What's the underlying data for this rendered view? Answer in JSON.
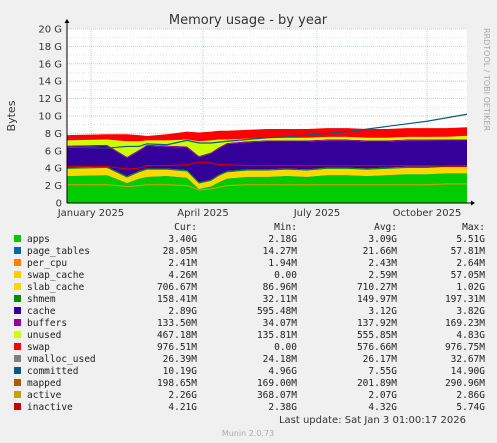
{
  "chart_data": {
    "type": "area",
    "title": "Memory usage - by year",
    "ylabel": "Bytes",
    "ylim": [
      0,
      20
    ],
    "y_unit": "G",
    "y_ticks": [
      "0",
      "2 G",
      "4 G",
      "6 G",
      "8 G",
      "10 G",
      "12 G",
      "14 G",
      "16 G",
      "18 G",
      "20 G"
    ],
    "x_ticks": [
      "January 2025",
      "April 2025",
      "July 2025",
      "October 2025"
    ],
    "x_tick_positions": [
      0.06,
      0.34,
      0.625,
      0.9
    ],
    "stack_order": [
      "apps",
      "page_tables",
      "per_cpu",
      "swap_cache",
      "slab_cache",
      "shmem",
      "cache",
      "buffers",
      "unused"
    ],
    "x": [
      0.0,
      0.1,
      0.15,
      0.18,
      0.2,
      0.25,
      0.3,
      0.33,
      0.36,
      0.38,
      0.4,
      0.45,
      0.5,
      0.55,
      0.6,
      0.65,
      0.7,
      0.75,
      0.8,
      0.85,
      0.9,
      0.95,
      1.0
    ],
    "series": [
      {
        "name": "apps",
        "color": "#00cc00",
        "values": [
          3.1,
          3.2,
          2.3,
          2.8,
          3.0,
          3.1,
          2.9,
          1.6,
          1.9,
          2.4,
          2.8,
          3.0,
          3.0,
          3.1,
          3.0,
          3.2,
          3.2,
          3.1,
          3.2,
          3.3,
          3.3,
          3.4,
          3.4
        ]
      },
      {
        "name": "page_tables",
        "color": "#0066b3",
        "values": [
          0.02,
          0.02,
          0.02,
          0.02,
          0.02,
          0.02,
          0.02,
          0.02,
          0.02,
          0.02,
          0.02,
          0.02,
          0.02,
          0.02,
          0.02,
          0.02,
          0.02,
          0.02,
          0.02,
          0.02,
          0.02,
          0.03,
          0.03
        ]
      },
      {
        "name": "per_cpu",
        "color": "#ff8000",
        "values": [
          0.002,
          0.002,
          0.002,
          0.002,
          0.002,
          0.002,
          0.002,
          0.002,
          0.002,
          0.002,
          0.002,
          0.002,
          0.002,
          0.002,
          0.002,
          0.002,
          0.002,
          0.002,
          0.002,
          0.002,
          0.002,
          0.002,
          0.002
        ]
      },
      {
        "name": "swap_cache",
        "color": "#ffcc00",
        "values": [
          0.0,
          0.0,
          0.0,
          0.0,
          0.0,
          0.0,
          0.0,
          0.0,
          0.0,
          0.0,
          0.0,
          0.0,
          0.0,
          0.0,
          0.0,
          0.0,
          0.0,
          0.0,
          0.0,
          0.0,
          0.0,
          0.0,
          0.0
        ]
      },
      {
        "name": "slab_cache",
        "color": "#ffd700",
        "values": [
          0.8,
          0.8,
          0.6,
          0.7,
          0.8,
          0.7,
          0.7,
          0.6,
          0.6,
          0.7,
          0.7,
          0.7,
          0.7,
          0.7,
          0.7,
          0.7,
          0.7,
          0.7,
          0.7,
          0.7,
          0.7,
          0.7,
          0.7
        ]
      },
      {
        "name": "shmem",
        "color": "#008f00",
        "values": [
          0.15,
          0.15,
          0.15,
          0.15,
          0.15,
          0.15,
          0.15,
          0.15,
          0.15,
          0.15,
          0.15,
          0.15,
          0.15,
          0.15,
          0.15,
          0.15,
          0.15,
          0.15,
          0.15,
          0.15,
          0.15,
          0.15,
          0.15
        ]
      },
      {
        "name": "cache",
        "color": "#330099",
        "values": [
          2.4,
          2.4,
          2.1,
          2.3,
          2.6,
          2.5,
          2.6,
          2.9,
          3.0,
          3.0,
          3.1,
          3.1,
          3.2,
          3.1,
          3.2,
          3.1,
          3.1,
          3.1,
          3.0,
          3.0,
          3.0,
          2.9,
          2.9
        ]
      },
      {
        "name": "buffers",
        "color": "#990099",
        "values": [
          0.13,
          0.13,
          0.13,
          0.13,
          0.13,
          0.13,
          0.13,
          0.13,
          0.13,
          0.13,
          0.13,
          0.13,
          0.13,
          0.13,
          0.13,
          0.13,
          0.13,
          0.13,
          0.13,
          0.13,
          0.13,
          0.13,
          0.13
        ]
      },
      {
        "name": "unused",
        "color": "#ccff00",
        "values": [
          0.6,
          0.6,
          1.8,
          1.0,
          0.5,
          0.6,
          0.8,
          1.7,
          1.4,
          0.9,
          0.4,
          0.3,
          0.3,
          0.3,
          0.3,
          0.3,
          0.3,
          0.3,
          0.3,
          0.3,
          0.3,
          0.3,
          0.4
        ]
      }
    ],
    "line_series": [
      {
        "name": "committed",
        "color": "#0a5a80",
        "values": [
          6.4,
          6.3,
          6.5,
          6.5,
          6.8,
          6.7,
          7.2,
          6.9,
          6.9,
          7.0,
          7.1,
          7.3,
          7.5,
          7.6,
          7.8,
          8.0,
          8.2,
          8.5,
          8.8,
          9.1,
          9.4,
          9.8,
          10.2
        ]
      },
      {
        "name": "inactive",
        "color": "#cc0000",
        "values": [
          4.2,
          4.2,
          3.9,
          4.0,
          4.3,
          4.3,
          4.4,
          4.7,
          4.6,
          4.4,
          4.4,
          4.3,
          4.3,
          4.3,
          4.3,
          4.3,
          4.3,
          4.3,
          4.3,
          4.3,
          4.3,
          4.2,
          4.2
        ]
      },
      {
        "name": "active",
        "color": "#c8a000",
        "values": [
          2.1,
          2.1,
          1.9,
          2.0,
          2.1,
          2.1,
          2.0,
          1.5,
          1.6,
          1.8,
          2.0,
          2.1,
          2.1,
          2.1,
          2.1,
          2.1,
          2.1,
          2.1,
          2.1,
          2.1,
          2.1,
          2.2,
          2.2
        ]
      }
    ],
    "swap_band": {
      "name": "swap",
      "color": "#ff0000",
      "values": [
        0.6,
        0.6,
        0.8,
        0.7,
        0.5,
        0.7,
        0.9,
        1.0,
        1.0,
        1.0,
        1.0,
        1.0,
        1.0,
        1.0,
        1.0,
        1.0,
        1.0,
        1.0,
        1.0,
        1.0,
        1.0,
        1.0,
        1.0
      ]
    },
    "legend_headers": [
      "Cur:",
      "Min:",
      "Avg:",
      "Max:"
    ],
    "legend": [
      {
        "name": "apps",
        "color": "#00cc00",
        "cur": "3.40G",
        "min": "2.18G",
        "avg": "3.09G",
        "max": "5.51G"
      },
      {
        "name": "page_tables",
        "color": "#0066b3",
        "cur": "28.05M",
        "min": "14.27M",
        "avg": "21.66M",
        "max": "57.81M"
      },
      {
        "name": "per_cpu",
        "color": "#ff8000",
        "cur": "2.41M",
        "min": "1.94M",
        "avg": "2.43M",
        "max": "2.64M"
      },
      {
        "name": "swap_cache",
        "color": "#ffcc00",
        "cur": "4.26M",
        "min": "0.00",
        "avg": "2.59M",
        "max": "57.05M"
      },
      {
        "name": "slab_cache",
        "color": "#ffd700",
        "cur": "706.67M",
        "min": "86.96M",
        "avg": "710.27M",
        "max": "1.02G"
      },
      {
        "name": "shmem",
        "color": "#008f00",
        "cur": "158.41M",
        "min": "32.11M",
        "avg": "149.97M",
        "max": "197.31M"
      },
      {
        "name": "cache",
        "color": "#330099",
        "cur": "2.89G",
        "min": "595.48M",
        "avg": "3.12G",
        "max": "3.82G"
      },
      {
        "name": "buffers",
        "color": "#990099",
        "cur": "133.50M",
        "min": "34.07M",
        "avg": "137.92M",
        "max": "169.23M"
      },
      {
        "name": "unused",
        "color": "#ccff00",
        "cur": "467.18M",
        "min": "135.81M",
        "avg": "555.85M",
        "max": "4.83G"
      },
      {
        "name": "swap",
        "color": "#ff0000",
        "cur": "976.51M",
        "min": "0.00",
        "avg": "576.66M",
        "max": "976.75M"
      },
      {
        "name": "vmalloc_used",
        "color": "#808080",
        "cur": "26.39M",
        "min": "24.18M",
        "avg": "26.17M",
        "max": "32.67M"
      },
      {
        "name": "committed",
        "color": "#0a5a80",
        "cur": "10.19G",
        "min": "4.96G",
        "avg": "7.55G",
        "max": "14.90G"
      },
      {
        "name": "mapped",
        "color": "#b35a00",
        "cur": "198.65M",
        "min": "169.00M",
        "avg": "201.89M",
        "max": "290.96M"
      },
      {
        "name": "active",
        "color": "#c8a000",
        "cur": "2.26G",
        "min": "368.07M",
        "avg": "2.07G",
        "max": "2.86G"
      },
      {
        "name": "inactive",
        "color": "#cc0000",
        "cur": "4.21G",
        "min": "2.38G",
        "avg": "4.32G",
        "max": "5.74G"
      }
    ]
  },
  "watermark": "RRDTOOL / TOBI OETIKER",
  "footer": "Last update: Sat Jan  3 01:00:17 2026",
  "munin_version": "Munin 2.0.73"
}
